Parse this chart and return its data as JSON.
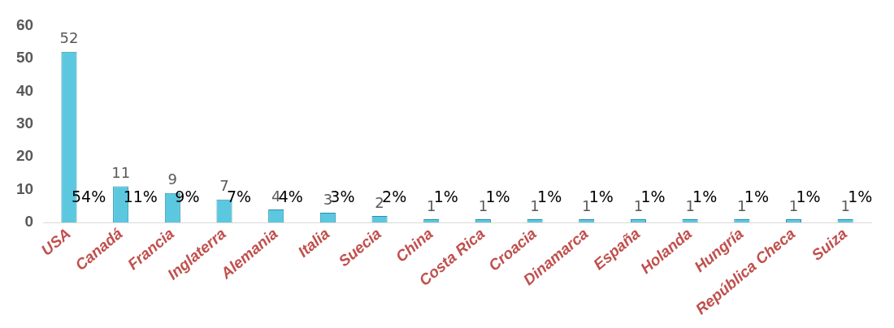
{
  "chart_data": {
    "type": "bar",
    "categories": [
      "USA",
      "Canadá",
      "Francia",
      "Inglaterra",
      "Alemania",
      "Italia",
      "Suecia",
      "China",
      "Costa Rica",
      "Croacia",
      "Dinamarca",
      "España",
      "Holanda",
      "Hungría",
      "República Checa",
      "Suiza"
    ],
    "values": [
      52,
      11,
      9,
      7,
      4,
      3,
      2,
      1,
      1,
      1,
      1,
      1,
      1,
      1,
      1,
      1
    ],
    "annotations": [
      "54%",
      "11%",
      "9%",
      "7%",
      "4%",
      "3%",
      "2%",
      "1%",
      "1%",
      "1%",
      "1%",
      "1%",
      "1%",
      "1%",
      "1%",
      "1%"
    ],
    "data_labels": true,
    "color": "#5bc8e0",
    "ylim": [
      0,
      60
    ],
    "yticks": [
      0,
      10,
      20,
      30,
      40,
      50,
      60
    ],
    "grid": false,
    "legend": false
  }
}
